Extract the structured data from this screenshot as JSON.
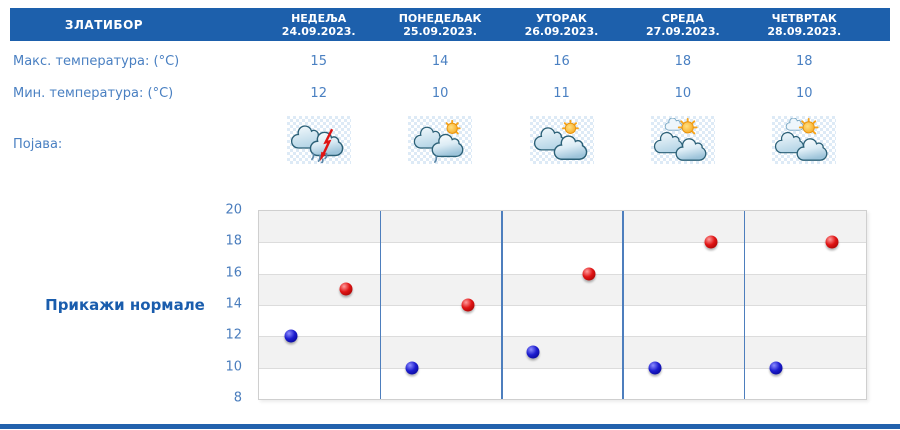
{
  "header": {
    "location": "ЗЛАТИБОР",
    "days": [
      {
        "name": "НЕДЕЉА",
        "date": "24.09.2023."
      },
      {
        "name": "ПОНЕДЕЉАК",
        "date": "25.09.2023."
      },
      {
        "name": "УТОРАК",
        "date": "26.09.2023."
      },
      {
        "name": "СРЕДА",
        "date": "27.09.2023."
      },
      {
        "name": "ЧЕТВРТАК",
        "date": "28.09.2023."
      }
    ]
  },
  "rows": {
    "max": {
      "label": "Макс. температура: (°C)",
      "values": [
        15,
        14,
        16,
        18,
        18
      ]
    },
    "min": {
      "label": "Мин. температура: (°C)",
      "values": [
        12,
        10,
        11,
        10,
        10
      ]
    },
    "appearance": {
      "label": "Појава:",
      "icons": [
        {
          "type": "cloud-rain-thunder-icon"
        },
        {
          "type": "sun-cloud-rain-icon"
        },
        {
          "type": "sun-behind-clouds-icon"
        },
        {
          "type": "partly-sunny-icon"
        },
        {
          "type": "partly-sunny-icon"
        }
      ]
    }
  },
  "normals_button": {
    "label": "Прикажи нормале"
  },
  "colors": {
    "header_bg": "#1d60ac",
    "header_text": "#ffffff",
    "table_text": "#4a80c2",
    "link_text": "#1a5dad",
    "footer_bar": "#2262ad",
    "max_point": "#d01414",
    "min_point": "#1414c8",
    "day_separator": "#4d7ebd",
    "plot_band": "#f2f2f2",
    "gridline": "#dcdcdc"
  },
  "chart_data": {
    "type": "scatter",
    "title": "",
    "xlabel": "",
    "ylabel": "",
    "categories": [
      "НЕДЕЉА 24.09.2023.",
      "ПОНЕДЕЉАК 25.09.2023.",
      "УТОРАК 26.09.2023.",
      "СРЕДА 27.09.2023.",
      "ЧЕТВРТАК 28.09.2023."
    ],
    "series": [
      {
        "name": "Макс. температура (°C)",
        "key": "max",
        "color": "#d01414",
        "values": [
          15,
          14,
          16,
          18,
          18
        ]
      },
      {
        "name": "Мин. температура (°C)",
        "key": "min",
        "color": "#1414c8",
        "values": [
          12,
          10,
          11,
          10,
          10
        ]
      }
    ],
    "ylim": [
      8,
      20
    ],
    "yticks": [
      8,
      10,
      12,
      14,
      16,
      18,
      20
    ],
    "ytick_step": 2,
    "grid": true,
    "legend": false,
    "notes": "red sphere = daily max, blue sphere = daily min; alternating gray bands every 2°C; blue vertical separators between day columns"
  }
}
